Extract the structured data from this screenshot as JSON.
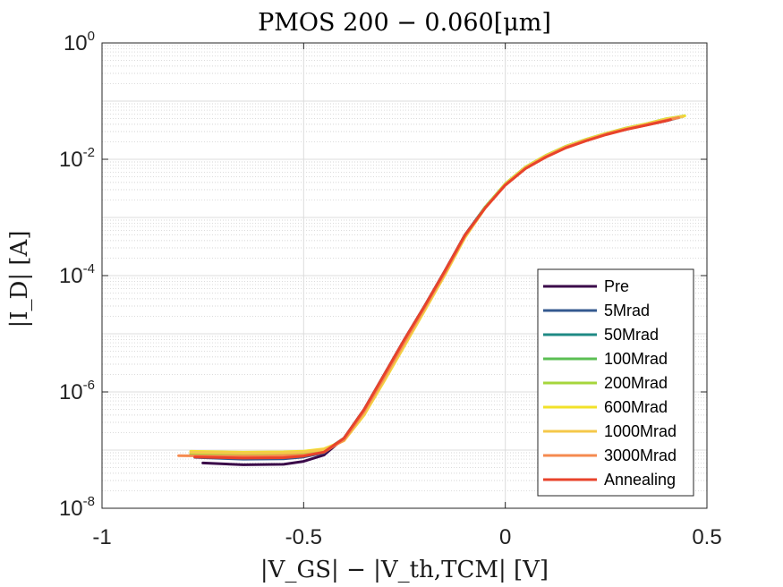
{
  "chart_data": {
    "type": "line",
    "title": "PMOS 200 − 0.060[μm]",
    "xlabel": "|V_GS| − |V_th,TCM| [V]",
    "ylabel": "|I_D| [A]",
    "xlim": [
      -1,
      0.5
    ],
    "ylim": [
      1e-08,
      1
    ],
    "yscale": "log",
    "grid": true,
    "minor_grid": true,
    "legend_position": "bottom-right",
    "x_ticks": [
      "-1",
      "-0.5",
      "0",
      "0.5"
    ],
    "y_ticks": [
      {
        "base": "10",
        "exp": "0"
      },
      {
        "base": "10",
        "exp": "-2"
      },
      {
        "base": "10",
        "exp": "-4"
      },
      {
        "base": "10",
        "exp": "-6"
      },
      {
        "base": "10",
        "exp": "-8"
      }
    ],
    "series": [
      {
        "name": "Pre",
        "color": "#3b0a4a",
        "x": [
          -0.75,
          -0.65,
          -0.55,
          -0.5,
          -0.45,
          -0.4,
          -0.35,
          -0.3,
          -0.25,
          -0.2,
          -0.15,
          -0.1,
          -0.05,
          0.0,
          0.05,
          0.1,
          0.15,
          0.2,
          0.25,
          0.3,
          0.35,
          0.4,
          0.42
        ],
        "y": [
          6e-08,
          5.6e-08,
          5.7e-08,
          6.4e-08,
          8.2e-08,
          1.6e-07,
          5e-07,
          2e-06,
          8e-06,
          3e-05,
          0.00012,
          0.0005,
          0.0015,
          0.0036,
          0.007,
          0.011,
          0.016,
          0.021,
          0.027,
          0.033,
          0.039,
          0.046,
          0.05
        ]
      },
      {
        "name": "5Mrad",
        "color": "#34598f",
        "x": [
          -0.77,
          -0.65,
          -0.55,
          -0.5,
          -0.45,
          -0.4,
          -0.35,
          -0.3,
          -0.25,
          -0.2,
          -0.15,
          -0.1,
          -0.05,
          0.0,
          0.05,
          0.1,
          0.15,
          0.2,
          0.25,
          0.3,
          0.35,
          0.4,
          0.43
        ],
        "y": [
          7.5e-08,
          7e-08,
          7.1e-08,
          7.6e-08,
          9e-08,
          1.6e-07,
          5e-07,
          2e-06,
          8e-06,
          3e-05,
          0.00012,
          0.0005,
          0.0015,
          0.0037,
          0.0071,
          0.0112,
          0.0162,
          0.0212,
          0.0272,
          0.0332,
          0.0395,
          0.047,
          0.052
        ]
      },
      {
        "name": "50Mrad",
        "color": "#1f8a84",
        "x": [
          -0.77,
          -0.65,
          -0.55,
          -0.5,
          -0.45,
          -0.4,
          -0.35,
          -0.3,
          -0.25,
          -0.2,
          -0.15,
          -0.1,
          -0.05,
          0.0,
          0.05,
          0.1,
          0.15,
          0.2,
          0.25,
          0.3,
          0.35,
          0.4,
          0.44
        ],
        "y": [
          8e-08,
          7.6e-08,
          7.7e-08,
          8.1e-08,
          9.4e-08,
          1.6e-07,
          4.8e-07,
          1.9e-06,
          7.5e-06,
          2.9e-05,
          0.000115,
          0.00049,
          0.0015,
          0.0037,
          0.0072,
          0.0113,
          0.0164,
          0.0214,
          0.0275,
          0.0335,
          0.04,
          0.048,
          0.054
        ]
      },
      {
        "name": "100Mrad",
        "color": "#5bbf53",
        "x": [
          -0.78,
          -0.65,
          -0.55,
          -0.5,
          -0.45,
          -0.4,
          -0.35,
          -0.3,
          -0.25,
          -0.2,
          -0.15,
          -0.1,
          -0.05,
          0.0,
          0.05,
          0.1,
          0.15,
          0.2,
          0.25,
          0.3,
          0.35,
          0.4,
          0.44
        ],
        "y": [
          8.4e-08,
          8e-08,
          8.1e-08,
          8.5e-08,
          9.8e-08,
          1.55e-07,
          4.6e-07,
          1.8e-06,
          7.2e-06,
          2.8e-05,
          0.00011,
          0.00048,
          0.0015,
          0.0038,
          0.0073,
          0.0115,
          0.0166,
          0.0217,
          0.0278,
          0.034,
          0.0405,
          0.049,
          0.055
        ]
      },
      {
        "name": "200Mrad",
        "color": "#a6d63c",
        "x": [
          -0.78,
          -0.65,
          -0.55,
          -0.5,
          -0.45,
          -0.4,
          -0.35,
          -0.3,
          -0.25,
          -0.2,
          -0.15,
          -0.1,
          -0.05,
          0.0,
          0.05,
          0.1,
          0.15,
          0.2,
          0.25,
          0.3,
          0.35,
          0.4,
          0.445
        ],
        "y": [
          8.8e-08,
          8.4e-08,
          8.5e-08,
          8.9e-08,
          1e-07,
          1.5e-07,
          4.4e-07,
          1.7e-06,
          6.8e-06,
          2.7e-05,
          0.000108,
          0.00047,
          0.0015,
          0.0038,
          0.0074,
          0.0116,
          0.0168,
          0.022,
          0.028,
          0.0345,
          0.041,
          0.05,
          0.056
        ]
      },
      {
        "name": "600Mrad",
        "color": "#f2e229",
        "x": [
          -0.78,
          -0.65,
          -0.55,
          -0.5,
          -0.45,
          -0.4,
          -0.35,
          -0.3,
          -0.25,
          -0.2,
          -0.15,
          -0.1,
          -0.05,
          0.0,
          0.05,
          0.1,
          0.15,
          0.2,
          0.25,
          0.3,
          0.35,
          0.4,
          0.445
        ],
        "y": [
          9.5e-08,
          9.2e-08,
          9.3e-08,
          9.6e-08,
          1.05e-07,
          1.45e-07,
          4e-07,
          1.55e-06,
          6.2e-06,
          2.5e-05,
          0.000102,
          0.00045,
          0.00145,
          0.00375,
          0.0073,
          0.0115,
          0.0166,
          0.0218,
          0.0278,
          0.0342,
          0.0408,
          0.0495,
          0.0555
        ]
      },
      {
        "name": "1000Mrad",
        "color": "#f5c84a",
        "x": [
          -0.78,
          -0.65,
          -0.55,
          -0.5,
          -0.45,
          -0.4,
          -0.35,
          -0.3,
          -0.25,
          -0.2,
          -0.15,
          -0.1,
          -0.05,
          0.0,
          0.05,
          0.1,
          0.15,
          0.2,
          0.25,
          0.3,
          0.35,
          0.4,
          0.44
        ],
        "y": [
          9.2e-08,
          8.9e-08,
          9e-08,
          9.3e-08,
          1.02e-07,
          1.45e-07,
          4.1e-07,
          1.6e-06,
          6.4e-06,
          2.55e-05,
          0.000104,
          0.00046,
          0.00145,
          0.0037,
          0.0072,
          0.0113,
          0.0164,
          0.0215,
          0.0275,
          0.0338,
          0.0402,
          0.0485,
          0.054
        ]
      },
      {
        "name": "3000Mrad",
        "color": "#f58a4f",
        "x": [
          -0.81,
          -0.7,
          -0.6,
          -0.5,
          -0.45,
          -0.4,
          -0.35,
          -0.3,
          -0.25,
          -0.2,
          -0.15,
          -0.1,
          -0.05,
          0.0,
          0.05,
          0.1,
          0.15,
          0.2,
          0.25,
          0.3,
          0.35,
          0.4,
          0.43
        ],
        "y": [
          8e-08,
          7.9e-08,
          7.9e-08,
          8.2e-08,
          9.2e-08,
          1.5e-07,
          4.6e-07,
          1.8e-06,
          7.2e-06,
          2.8e-05,
          0.000112,
          0.00048,
          0.00145,
          0.0036,
          0.007,
          0.011,
          0.016,
          0.021,
          0.027,
          0.033,
          0.039,
          0.047,
          0.052
        ]
      },
      {
        "name": "Annealing",
        "color": "#e8432b",
        "x": [
          -0.77,
          -0.65,
          -0.55,
          -0.5,
          -0.45,
          -0.4,
          -0.35,
          -0.3,
          -0.25,
          -0.2,
          -0.15,
          -0.1,
          -0.05,
          0.0,
          0.05,
          0.1,
          0.15,
          0.2,
          0.25,
          0.3,
          0.35,
          0.4,
          0.41
        ],
        "y": [
          7.6e-08,
          7.3e-08,
          7.4e-08,
          7.9e-08,
          9.2e-08,
          1.6e-07,
          5e-07,
          2e-06,
          8e-06,
          3e-05,
          0.00012,
          0.0005,
          0.00145,
          0.0036,
          0.0069,
          0.0108,
          0.0157,
          0.0207,
          0.0265,
          0.0325,
          0.0385,
          0.046,
          0.048
        ]
      }
    ]
  }
}
